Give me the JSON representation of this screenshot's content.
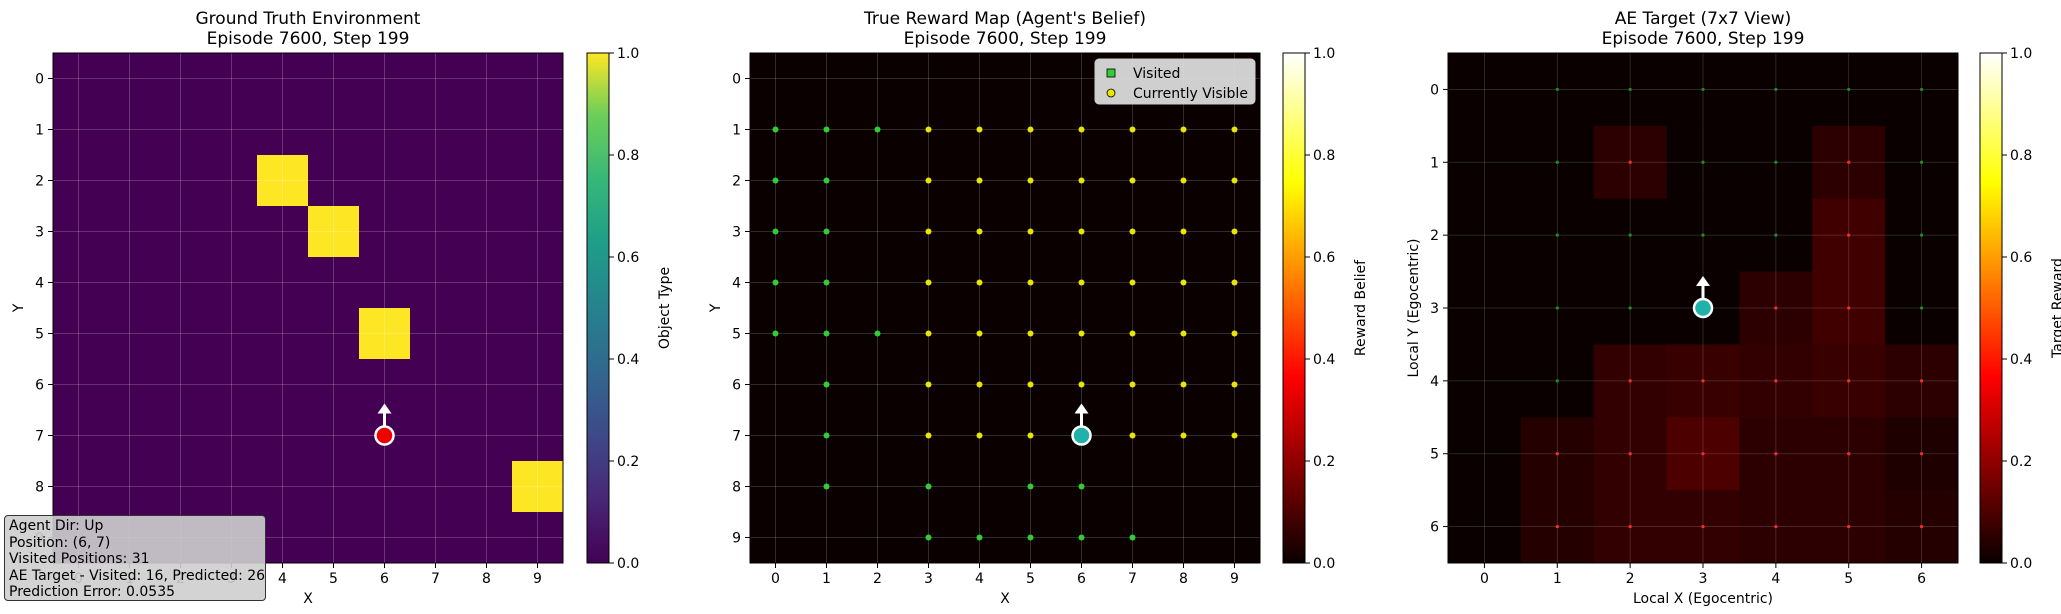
{
  "chart_data": [
    {
      "type": "heatmap",
      "title": "Ground Truth Environment",
      "subtitle": "Episode 7600, Step 199",
      "xlabel": "X",
      "ylabel": "Y",
      "x_ticks": [
        "0",
        "1",
        "2",
        "3",
        "4",
        "5",
        "6",
        "7",
        "8",
        "9"
      ],
      "y_ticks": [
        "0",
        "1",
        "2",
        "3",
        "4",
        "5",
        "6",
        "7",
        "8",
        "9"
      ],
      "colorbar_label": "Object Type",
      "colorbar_ticks": [
        "0.0",
        "0.2",
        "0.4",
        "0.6",
        "0.8",
        "1.0"
      ],
      "colormap": "viridis",
      "grid": true,
      "cells": [
        {
          "x": 4,
          "y": 2,
          "value": 1.0
        },
        {
          "x": 5,
          "y": 3,
          "value": 1.0
        },
        {
          "x": 6,
          "y": 5,
          "value": 1.0
        },
        {
          "x": 9,
          "y": 8,
          "value": 1.0
        }
      ],
      "agent": {
        "x": 6,
        "y": 7,
        "direction": "up",
        "color": "#ee0000"
      }
    },
    {
      "type": "heatmap",
      "title": "True Reward Map (Agent's Belief)",
      "subtitle": "Episode 7600, Step 199",
      "xlabel": "X",
      "ylabel": "Y",
      "x_ticks": [
        "0",
        "1",
        "2",
        "3",
        "4",
        "5",
        "6",
        "7",
        "8",
        "9"
      ],
      "y_ticks": [
        "0",
        "1",
        "2",
        "3",
        "4",
        "5",
        "6",
        "7",
        "8",
        "9"
      ],
      "colorbar_label": "Reward Belief",
      "colorbar_ticks": [
        "0.0",
        "0.2",
        "0.4",
        "0.6",
        "0.8",
        "1.0"
      ],
      "colormap": "hot",
      "legend": {
        "placement": "top-right",
        "entries": [
          "Visited",
          "Currently Visible"
        ]
      },
      "visited": [
        [
          0,
          1
        ],
        [
          1,
          1
        ],
        [
          2,
          1
        ],
        [
          0,
          2
        ],
        [
          1,
          2
        ],
        [
          0,
          3
        ],
        [
          1,
          3
        ],
        [
          0,
          4
        ],
        [
          1,
          4
        ],
        [
          0,
          5
        ],
        [
          1,
          5
        ],
        [
          2,
          5
        ],
        [
          1,
          6
        ],
        [
          1,
          7
        ],
        [
          1,
          8
        ],
        [
          3,
          8
        ],
        [
          5,
          8
        ],
        [
          6,
          8
        ],
        [
          3,
          9
        ],
        [
          4,
          9
        ],
        [
          5,
          9
        ],
        [
          6,
          9
        ],
        [
          7,
          9
        ]
      ],
      "visible_rows": {
        "y_from": 1,
        "y_to": 7,
        "x_from": 3,
        "x_to": 9
      },
      "agent": {
        "x": 6,
        "y": 7,
        "direction": "up",
        "color": "#20b2aa"
      }
    },
    {
      "type": "heatmap",
      "title": "AE Target (7x7 View)",
      "subtitle": "Episode 7600, Step 199",
      "xlabel": "Local X (Egocentric)",
      "ylabel": "Local Y (Egocentric)",
      "x_ticks": [
        "0",
        "1",
        "2",
        "3",
        "4",
        "5",
        "6"
      ],
      "y_ticks": [
        "0",
        "1",
        "2",
        "3",
        "4",
        "5",
        "6"
      ],
      "colorbar_label": "Target Reward",
      "colorbar_ticks": [
        "0.0",
        "0.2",
        "0.4",
        "0.6",
        "0.8",
        "1.0"
      ],
      "colormap": "hot",
      "values": [
        [
          0.0,
          0.0,
          0.0,
          0.0,
          0.0,
          0.0,
          0.0
        ],
        [
          0.0,
          0.0,
          0.05,
          0.0,
          0.0,
          0.05,
          0.0
        ],
        [
          0.0,
          0.0,
          0.0,
          0.0,
          0.0,
          0.08,
          0.0
        ],
        [
          0.0,
          0.0,
          0.0,
          0.0,
          0.05,
          0.08,
          0.0
        ],
        [
          0.0,
          0.0,
          0.06,
          0.07,
          0.06,
          0.07,
          0.05
        ],
        [
          0.0,
          0.04,
          0.06,
          0.1,
          0.05,
          0.05,
          0.03
        ],
        [
          0.0,
          0.04,
          0.06,
          0.06,
          0.05,
          0.05,
          0.04
        ]
      ],
      "agent": {
        "x": 3,
        "y": 3,
        "direction": "up",
        "color": "#20b2aa"
      }
    }
  ],
  "info_box": {
    "line1": "Agent Dir: Up",
    "line2": "Position: (6, 7)",
    "line3": "Visited Positions: 31",
    "line4": "AE Target - Visited: 16, Predicted: 26",
    "line5": "Prediction Error: 0.0535"
  }
}
